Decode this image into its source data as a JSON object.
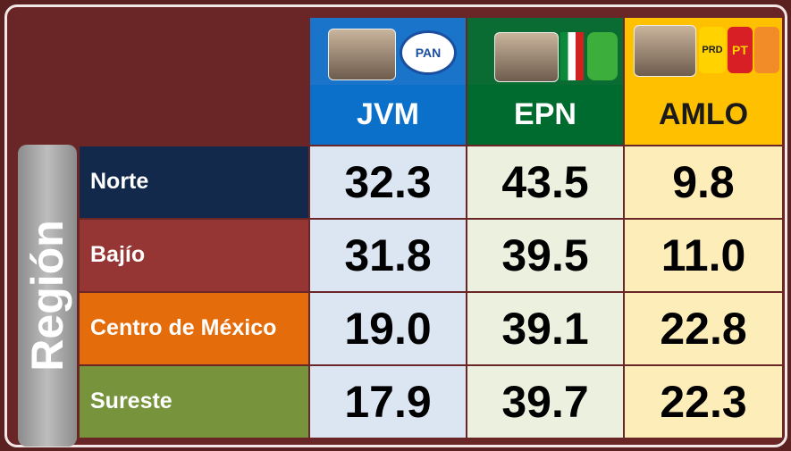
{
  "header": {
    "row_group_label": "Región",
    "logos": [
      "PAN",
      "PRD",
      "PT"
    ]
  },
  "table": {
    "columns": [
      "JVM",
      "EPN",
      "AMLO"
    ],
    "rows": [
      {
        "label": "Norte",
        "values": [
          "32.3",
          "43.5",
          "9.8"
        ]
      },
      {
        "label": "Bajío",
        "values": [
          "31.8",
          "39.5",
          "11.0"
        ]
      },
      {
        "label": "Centro de México",
        "values": [
          "19.0",
          "39.1",
          "22.8"
        ]
      },
      {
        "label": "Sureste",
        "values": [
          "17.9",
          "39.7",
          "22.3"
        ]
      }
    ]
  }
}
